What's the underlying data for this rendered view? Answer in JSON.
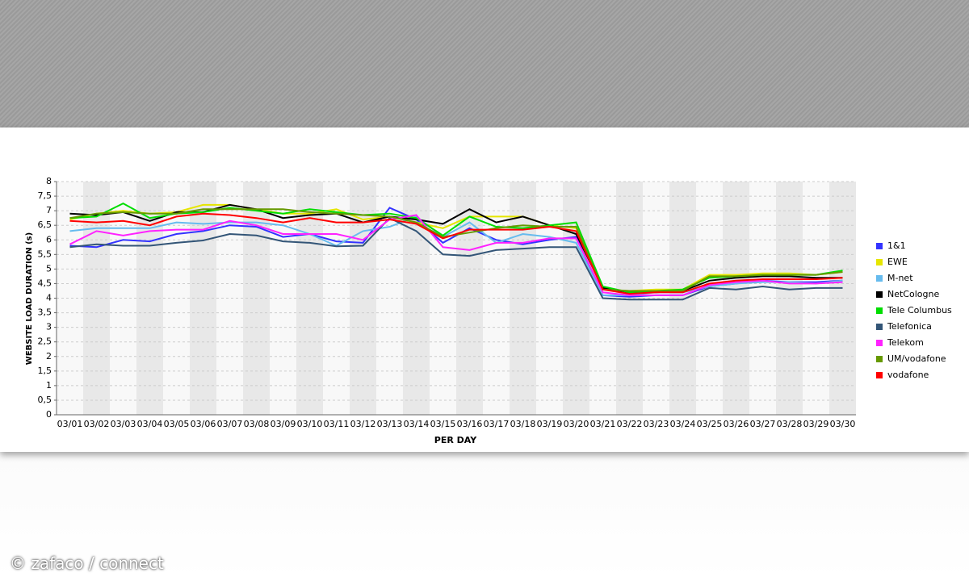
{
  "chart_data": {
    "type": "line",
    "y_label": "WEBSITE LOAD DURATION (s)",
    "x_label": "PER DAY",
    "categories": [
      "03/01",
      "03/02",
      "03/03",
      "03/04",
      "03/05",
      "03/06",
      "03/07",
      "03/08",
      "03/09",
      "03/10",
      "03/11",
      "03/12",
      "03/13",
      "03/14",
      "03/15",
      "03/16",
      "03/17",
      "03/18",
      "03/19",
      "03/20",
      "03/21",
      "03/22",
      "03/23",
      "03/24",
      "03/25",
      "03/26",
      "03/27",
      "03/28",
      "03/29",
      "03/30"
    ],
    "ylim": [
      0,
      8
    ],
    "yticks": [
      0,
      {
        "value": 0.5,
        "label": "0,5"
      },
      1,
      {
        "value": 1.5,
        "label": "1,5"
      },
      2,
      {
        "value": 2.5,
        "label": "2,5"
      },
      3,
      {
        "value": 3.5,
        "label": "3,5"
      },
      4,
      {
        "value": 4.5,
        "label": "4,5"
      },
      5,
      {
        "value": 5.5,
        "label": "5,5"
      },
      6,
      {
        "value": 6.5,
        "label": "6,5"
      },
      7,
      {
        "value": 7.5,
        "label": "7,5"
      },
      8
    ],
    "grid": true,
    "legend": "right",
    "series": [
      {
        "name": "1&1",
        "color": "#3333ff",
        "values": [
          5.8,
          5.75,
          6.0,
          5.95,
          6.2,
          6.3,
          6.5,
          6.45,
          6.1,
          6.2,
          5.95,
          5.9,
          7.1,
          6.7,
          5.9,
          6.4,
          6.0,
          5.85,
          6.0,
          6.1,
          4.1,
          4.05,
          4.1,
          4.1,
          4.4,
          4.5,
          4.6,
          4.55,
          4.55,
          4.6
        ]
      },
      {
        "name": "EWE",
        "color": "#e6e600",
        "values": [
          6.7,
          6.9,
          7.0,
          6.9,
          6.95,
          7.2,
          7.2,
          7.05,
          6.9,
          6.9,
          7.05,
          6.7,
          6.8,
          6.6,
          6.4,
          6.8,
          6.8,
          6.8,
          6.5,
          6.4,
          4.3,
          4.25,
          4.3,
          4.3,
          4.8,
          4.8,
          4.85,
          4.85,
          4.8,
          4.9
        ]
      },
      {
        "name": "M-net",
        "color": "#66bbee",
        "values": [
          6.3,
          6.4,
          6.4,
          6.4,
          6.6,
          6.55,
          6.6,
          6.6,
          6.5,
          6.2,
          5.8,
          6.3,
          6.45,
          6.8,
          6.1,
          6.6,
          5.9,
          6.2,
          6.1,
          5.9,
          4.1,
          4.1,
          4.2,
          4.2,
          4.4,
          4.5,
          4.55,
          4.55,
          4.5,
          4.6
        ]
      },
      {
        "name": "NetCologne",
        "color": "#000000",
        "values": [
          6.9,
          6.85,
          6.95,
          6.65,
          6.95,
          6.95,
          7.2,
          7.05,
          6.75,
          6.85,
          6.9,
          6.6,
          6.8,
          6.7,
          6.55,
          7.05,
          6.6,
          6.8,
          6.5,
          6.2,
          4.35,
          4.2,
          4.2,
          4.25,
          4.6,
          4.7,
          4.75,
          4.75,
          4.7,
          4.7
        ]
      },
      {
        "name": "Tele Columbus",
        "color": "#00dd00",
        "values": [
          6.75,
          6.8,
          7.25,
          6.75,
          6.9,
          6.95,
          7.1,
          7.0,
          6.9,
          7.05,
          6.95,
          6.85,
          6.9,
          6.75,
          6.15,
          6.8,
          6.45,
          6.4,
          6.5,
          6.6,
          4.4,
          4.2,
          4.25,
          4.3,
          4.7,
          4.75,
          4.8,
          4.8,
          4.8,
          4.95
        ]
      },
      {
        "name": "Telefonica",
        "color": "#335577",
        "values": [
          5.75,
          5.85,
          5.8,
          5.8,
          5.9,
          5.98,
          6.2,
          6.15,
          5.95,
          5.9,
          5.78,
          5.8,
          6.75,
          6.3,
          5.5,
          5.45,
          5.65,
          5.7,
          5.75,
          5.75,
          4.0,
          3.95,
          3.95,
          3.95,
          4.35,
          4.3,
          4.4,
          4.3,
          4.35,
          4.35
        ]
      },
      {
        "name": "Telekom",
        "color": "#ff22ff",
        "values": [
          5.85,
          6.3,
          6.15,
          6.3,
          6.35,
          6.35,
          6.65,
          6.5,
          6.2,
          6.2,
          6.2,
          6.0,
          6.7,
          6.85,
          5.75,
          5.65,
          5.9,
          5.9,
          6.05,
          6.05,
          4.2,
          4.1,
          4.1,
          4.1,
          4.45,
          4.55,
          4.6,
          4.5,
          4.5,
          4.55
        ]
      },
      {
        "name": "UM/vodafone",
        "color": "#669900",
        "values": [
          6.75,
          6.9,
          6.95,
          6.9,
          6.9,
          7.05,
          7.05,
          7.05,
          7.05,
          6.95,
          6.9,
          6.85,
          6.8,
          6.6,
          6.1,
          6.25,
          6.4,
          6.5,
          6.45,
          6.45,
          4.3,
          4.25,
          4.25,
          4.25,
          4.75,
          4.75,
          4.8,
          4.8,
          4.8,
          4.9
        ]
      },
      {
        "name": "vodafone",
        "color": "#ff0000",
        "values": [
          6.65,
          6.6,
          6.65,
          6.5,
          6.8,
          6.9,
          6.85,
          6.75,
          6.6,
          6.75,
          6.6,
          6.6,
          6.7,
          6.55,
          6.05,
          6.35,
          6.35,
          6.35,
          6.45,
          6.3,
          4.3,
          4.15,
          4.2,
          4.2,
          4.5,
          4.6,
          4.65,
          4.65,
          4.65,
          4.7
        ]
      }
    ]
  },
  "credit": "© zafaco / connect"
}
